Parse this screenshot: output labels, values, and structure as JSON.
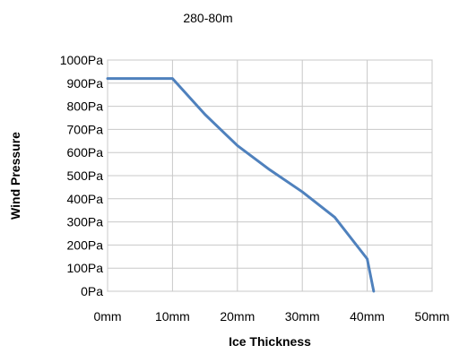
{
  "chart_data": {
    "type": "line",
    "title": "280-80m",
    "xlabel": "Ice Thickness",
    "ylabel": "Wind Pressure",
    "x_ticks": [
      "0mm",
      "10mm",
      "20mm",
      "30mm",
      "40mm",
      "50mm"
    ],
    "y_ticks": [
      "0Pa",
      "100Pa",
      "200Pa",
      "300Pa",
      "400Pa",
      "500Pa",
      "600Pa",
      "700Pa",
      "800Pa",
      "900Pa",
      "1000Pa"
    ],
    "xlim": [
      0,
      50
    ],
    "ylim": [
      0,
      1000
    ],
    "grid": true,
    "legend": "none",
    "series": [
      {
        "color": "#4F81BD",
        "x": [
          0,
          5,
          10,
          15,
          20,
          25,
          30,
          35,
          40,
          41
        ],
        "y": [
          920,
          920,
          920,
          765,
          630,
          525,
          430,
          320,
          140,
          0
        ]
      }
    ]
  }
}
